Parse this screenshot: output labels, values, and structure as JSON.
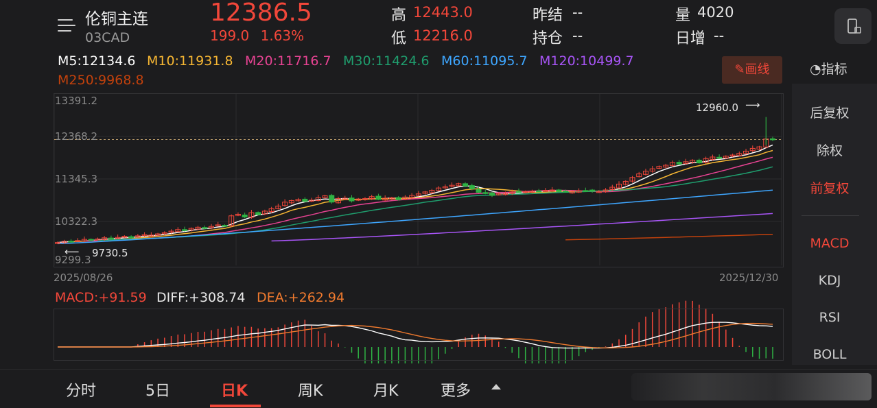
{
  "header": {
    "title": "伦铜主连",
    "code": "03CAD",
    "price": "12386.5",
    "change": "199.0",
    "change_pct": "1.63%",
    "high_label": "高",
    "high": "12443.0",
    "low_label": "低",
    "low": "12216.0",
    "prev_settle_label": "昨结",
    "prev_settle": "--",
    "open_interest_label": "持仓",
    "open_interest": "--",
    "volume_label": "量",
    "volume": "4020",
    "daily_increase_label": "日增",
    "daily_increase": "--"
  },
  "ma_row": {
    "ma5": "M5:12134.6",
    "ma10": "M10:11931.8",
    "ma20": "M20:11716.7",
    "ma30": "M30:11424.6",
    "ma60": "M60:11095.7",
    "ma120": "M120:10499.7",
    "ma250": "M250:9968.8"
  },
  "toolbar": {
    "draw_label": "画线",
    "indicator_label": "指标"
  },
  "side_panel": {
    "items": [
      "后复权",
      "除权",
      "前复权",
      "MACD",
      "KDJ",
      "RSI",
      "BOLL"
    ],
    "active": [
      "前复权",
      "MACD"
    ]
  },
  "chart_labels": {
    "y_ticks": [
      "13391.2",
      "12368.2",
      "11345.3",
      "10322.3",
      "9299.3"
    ],
    "start_date": "2025/08/26",
    "end_date": "2025/12/30",
    "max_annotation": "12960.0",
    "min_annotation": "9730.5"
  },
  "macd": {
    "macd_label": "MACD:+91.59",
    "diff_label": "DIFF:+308.74",
    "dea_label": "DEA:+262.94"
  },
  "tabs": [
    "分时",
    "5日",
    "日K",
    "周K",
    "月K",
    "更多"
  ],
  "active_tab": "日K",
  "colors": {
    "up": "#f2473a",
    "down": "#2fb344",
    "ma5": "#ffffff",
    "ma10": "#f7b733",
    "ma20": "#e84393",
    "ma30": "#1f9e6e",
    "ma60": "#3ea6ff",
    "ma120": "#a855f7",
    "ma250": "#c2410c"
  },
  "chart_data": {
    "type": "candlestick",
    "x_range": [
      "2025/08/26",
      "2025/12/30"
    ],
    "ylim": [
      9299.3,
      13391.2
    ],
    "y_ticks": [
      13391.2,
      12368.2,
      11345.3,
      10322.3,
      9299.3
    ],
    "max_point": 12960.0,
    "min_point": 9730.5,
    "current": 12386.5,
    "close": [
      9760,
      9790,
      9790,
      9810,
      9840,
      9830,
      9850,
      9880,
      9870,
      9890,
      9920,
      9900,
      9930,
      9960,
      9950,
      9980,
      10010,
      10050,
      10090,
      10070,
      10120,
      10150,
      10130,
      10170,
      10210,
      10190,
      10440,
      10480,
      10410,
      10520,
      10470,
      10560,
      10620,
      10690,
      10790,
      10830,
      10860,
      10810,
      10840,
      10900,
      10950,
      10790,
      10880,
      10890,
      10820,
      10870,
      10880,
      10930,
      10860,
      10890,
      10900,
      10850,
      10920,
      10960,
      11000,
      11050,
      11090,
      11150,
      11180,
      11220,
      11260,
      11200,
      11130,
      11040,
      11020,
      10960,
      11000,
      11010,
      11050,
      11060,
      11060,
      11070,
      11070,
      11090,
      11100,
      11060,
      11060,
      11050,
      11080,
      11080,
      11070,
      11060,
      11100,
      11170,
      11250,
      11320,
      11420,
      11510,
      11580,
      11640,
      11700,
      11730,
      11800,
      11760,
      11820,
      11860,
      11790,
      11900,
      11940,
      11910,
      11960,
      11990,
      12030,
      12090,
      12160,
      12200,
      12400,
      12386.5
    ],
    "ma_lines": {
      "M5": 12134.6,
      "M10": 11931.8,
      "M20": 11716.7,
      "M30": 11424.6,
      "M60": 11095.7,
      "M120": 10499.7,
      "M250": 9968.8
    },
    "macd_values": {
      "MACD": 91.59,
      "DIFF": 308.74,
      "DEA": 262.94
    }
  }
}
